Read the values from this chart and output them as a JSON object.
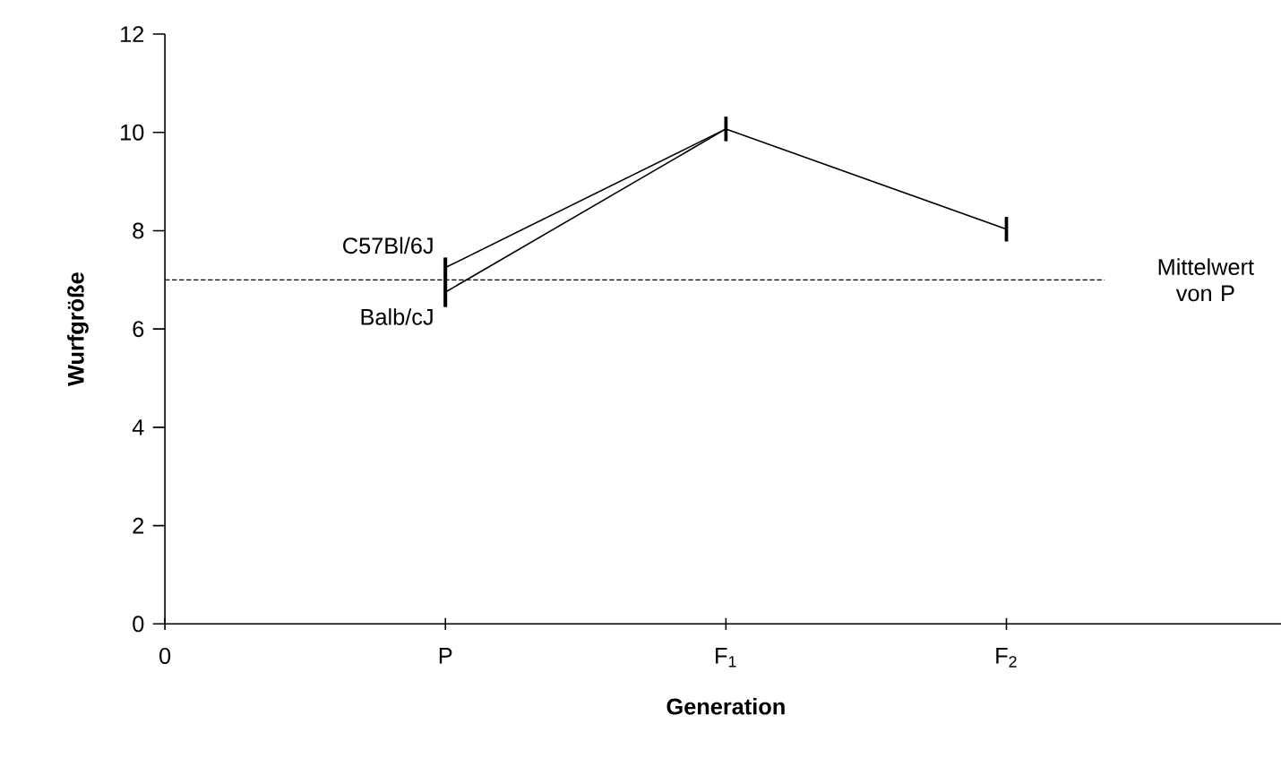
{
  "chart_data": {
    "type": "line",
    "xlabel": "Generation",
    "ylabel": "Wurfgröße",
    "categories": [
      "0",
      "P",
      "F$_{1}$",
      "F$_{2}$",
      null
    ],
    "ylim": [
      0,
      12
    ],
    "yticks": [
      0,
      2,
      4,
      6,
      8,
      10,
      12
    ],
    "series": [
      {
        "name": "C57Bl/6J",
        "color": "#000000",
        "values": [
          null,
          7.25,
          10.07,
          8.03,
          null
        ],
        "errors": [
          null,
          [
            6.45,
            7.45
          ],
          0.25,
          0.25,
          null
        ]
      },
      {
        "name": "Balb/cJ",
        "color": "#000000",
        "values": [
          null,
          6.75,
          10.07,
          null,
          null
        ],
        "errors": [
          null,
          [
            6.45,
            7.45
          ],
          null,
          null,
          null
        ]
      }
    ],
    "ref_lines": [
      {
        "axis": "y",
        "value": 7.0,
        "label": "Mittelwert von P",
        "line_style": "dashed",
        "color": "#000000"
      }
    ]
  }
}
